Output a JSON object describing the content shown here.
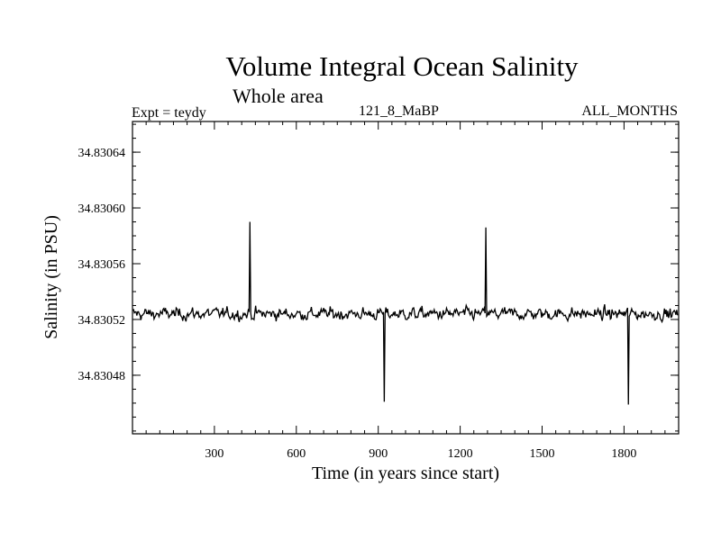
{
  "chart_data": {
    "type": "line",
    "title": "Volume Integral Ocean Salinity",
    "subtitle": "Whole area",
    "experiment_label": "Expt = teydy",
    "experiment_name": "121_8_MaBP",
    "season": "ALL_MONTHS",
    "xlabel": "Time (in years since start)",
    "ylabel": "Salinity (in PSU)",
    "xlim": [
      0,
      2000
    ],
    "ylim": [
      34.830438,
      34.830662
    ],
    "x_ticks": [
      300,
      600,
      900,
      1200,
      1500,
      1800
    ],
    "x_tick_labels": [
      "300",
      "600",
      "900",
      "1200",
      "1500",
      "1800"
    ],
    "y_ticks": [
      34.83048,
      34.83052,
      34.83056,
      34.8306,
      34.83064
    ],
    "y_tick_labels": [
      "34.83048",
      "34.83052",
      "34.83056",
      "34.83060",
      "34.83064"
    ],
    "series": [
      {
        "name": "Salinity",
        "x_start": 1,
        "x_step": 3,
        "mean": 34.830524,
        "std_dev": 2.2e-06,
        "min": 34.830459,
        "max": 34.83059,
        "count": 666,
        "values_note": "noisy annual series fluctuating around the mean; notable spikes near years 430 (max ~34.83059), 920 (min ~34.830461), 1290 (~34.830586), 1815 (min ~34.830459)"
      }
    ]
  }
}
